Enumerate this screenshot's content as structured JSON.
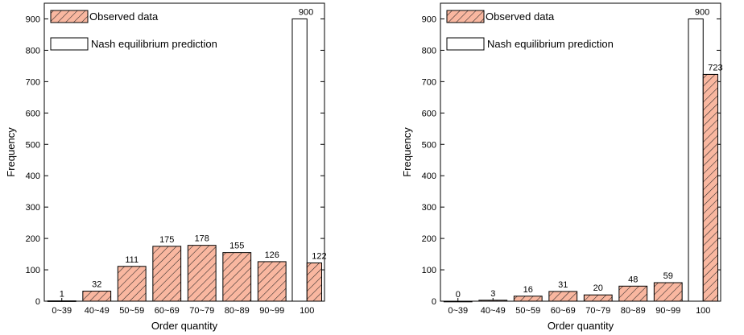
{
  "chart_data": [
    {
      "type": "bar",
      "xlabel": "Order quantity",
      "ylabel": "Frequency",
      "ylim": [
        0,
        950
      ],
      "yticks": [
        0,
        100,
        200,
        300,
        400,
        500,
        600,
        700,
        800,
        900
      ],
      "grid": false,
      "legend_position": "top-left",
      "categories": [
        "0~39",
        "40~49",
        "50~59",
        "60~69",
        "70~79",
        "80~89",
        "90~99",
        "100"
      ],
      "series": [
        {
          "name": "Observed data",
          "style": "hatched",
          "color": "#f9b7a0",
          "values": [
            1,
            32,
            111,
            175,
            178,
            155,
            126,
            122
          ]
        },
        {
          "name": "Nash equilibrium prediction",
          "style": "outline",
          "color": "#ffffff",
          "values": [
            0,
            0,
            0,
            0,
            0,
            0,
            0,
            900
          ]
        }
      ]
    },
    {
      "type": "bar",
      "xlabel": "Order quantity",
      "ylabel": "Frequency",
      "ylim": [
        0,
        950
      ],
      "yticks": [
        0,
        100,
        200,
        300,
        400,
        500,
        600,
        700,
        800,
        900
      ],
      "grid": false,
      "legend_position": "top-left",
      "categories": [
        "0~39",
        "40~49",
        "50~59",
        "60~69",
        "70~79",
        "80~89",
        "90~99",
        "100"
      ],
      "series": [
        {
          "name": "Observed data",
          "style": "hatched",
          "color": "#f9b7a0",
          "values": [
            0,
            3,
            16,
            31,
            20,
            48,
            59,
            723
          ]
        },
        {
          "name": "Nash equilibrium prediction",
          "style": "outline",
          "color": "#ffffff",
          "values": [
            0,
            0,
            0,
            0,
            0,
            0,
            0,
            900
          ]
        }
      ]
    }
  ]
}
